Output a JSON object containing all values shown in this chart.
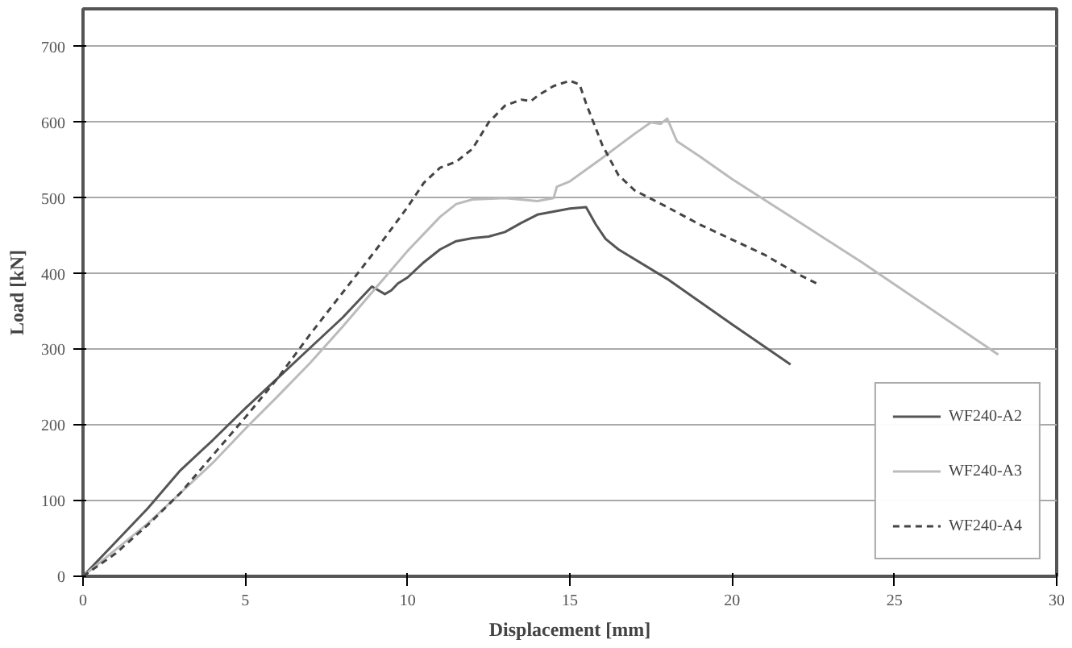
{
  "chart_data": {
    "type": "line",
    "xlabel": "Displacement [mm]",
    "ylabel": "Load [kN]",
    "xlim": [
      0,
      30
    ],
    "xticks": [
      0,
      5,
      10,
      15,
      20,
      25,
      30
    ],
    "ylim": [
      0,
      750
    ],
    "yticks": [
      0,
      100,
      200,
      300,
      400,
      500,
      600,
      700
    ],
    "grid": "y",
    "legend": "bottom right",
    "marker": "none",
    "series": [
      {
        "name": "WF240-A2",
        "color": "#555555",
        "line_style": "solid",
        "x": [
          0,
          1,
          2,
          3,
          4,
          5,
          6,
          7,
          8,
          8.9,
          9.3,
          9.5,
          9.7,
          10,
          10.5,
          11,
          11.5,
          12,
          12.5,
          13,
          13.5,
          14,
          14.5,
          15,
          15.5,
          15.8,
          16.1,
          16.5,
          18,
          20,
          21.8
        ],
        "values": [
          0,
          45,
          90,
          140,
          180,
          222,
          262,
          302,
          342,
          383,
          373,
          378,
          387,
          395,
          415,
          432,
          443,
          447,
          449,
          455,
          467,
          478,
          482,
          486,
          488,
          465,
          446,
          432,
          393,
          333,
          280
        ]
      },
      {
        "name": "WF240-A3",
        "color": "#bbbbbb",
        "line_style": "solid",
        "x": [
          0,
          2,
          3,
          4,
          5,
          6,
          7,
          8,
          9,
          10,
          11,
          11.5,
          12,
          13,
          14,
          14.5,
          14.6,
          15,
          16,
          17,
          17.5,
          17.8,
          18,
          18.3,
          19,
          20,
          22,
          24,
          26,
          28.2
        ],
        "values": [
          0,
          70,
          110,
          150,
          195,
          238,
          282,
          330,
          380,
          430,
          475,
          492,
          498,
          500,
          496,
          500,
          515,
          522,
          553,
          585,
          600,
          598,
          605,
          575,
          555,
          525,
          470,
          415,
          357,
          293
        ]
      },
      {
        "name": "WF240-A4",
        "color": "#444444",
        "line_style": "dashed",
        "x": [
          0,
          1,
          2,
          3,
          4,
          5,
          6,
          7,
          8,
          9,
          10,
          10.5,
          11,
          11.5,
          12,
          12.5,
          13,
          13.5,
          13.8,
          14,
          14.5,
          15,
          15.3,
          15.5,
          16,
          16.5,
          17,
          18,
          19,
          20,
          21,
          22,
          22.7
        ],
        "values": [
          0,
          30,
          68,
          110,
          160,
          210,
          262,
          320,
          375,
          430,
          488,
          520,
          540,
          548,
          565,
          600,
          622,
          630,
          628,
          635,
          648,
          655,
          650,
          625,
          570,
          530,
          510,
          488,
          465,
          445,
          425,
          400,
          385
        ]
      }
    ]
  }
}
